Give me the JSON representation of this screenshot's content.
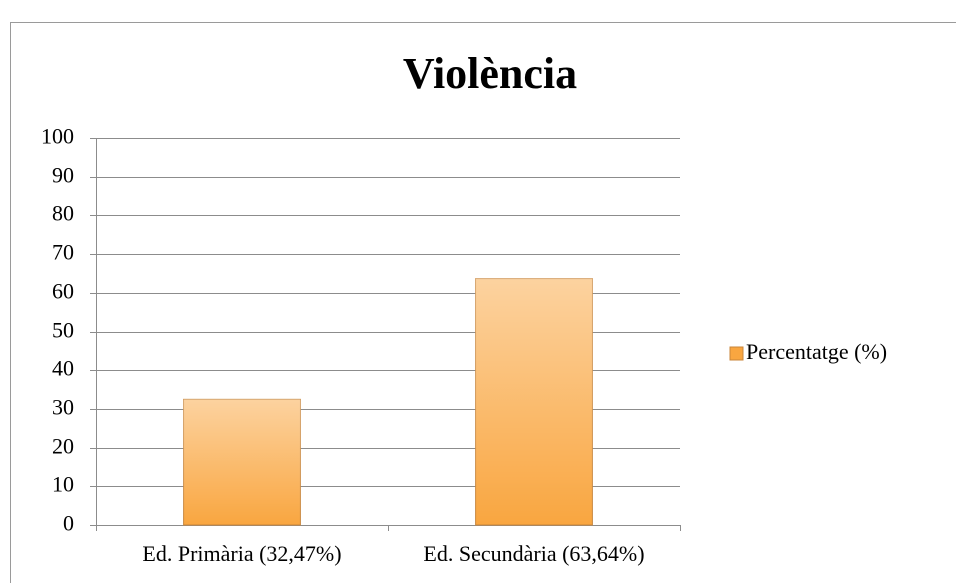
{
  "chart_data": {
    "type": "bar",
    "title": "Violència",
    "categories": [
      "Ed. Primària (32,47%)",
      "Ed. Secundària (63,64%)"
    ],
    "series": [
      {
        "name": "Percentatge (%)",
        "color": "#f9a640",
        "values": [
          32.47,
          63.64
        ]
      }
    ],
    "ylim": [
      0,
      100
    ],
    "yticks": [
      0,
      10,
      20,
      30,
      40,
      50,
      60,
      70,
      80,
      90,
      100
    ],
    "grid": true,
    "legend": "right"
  }
}
